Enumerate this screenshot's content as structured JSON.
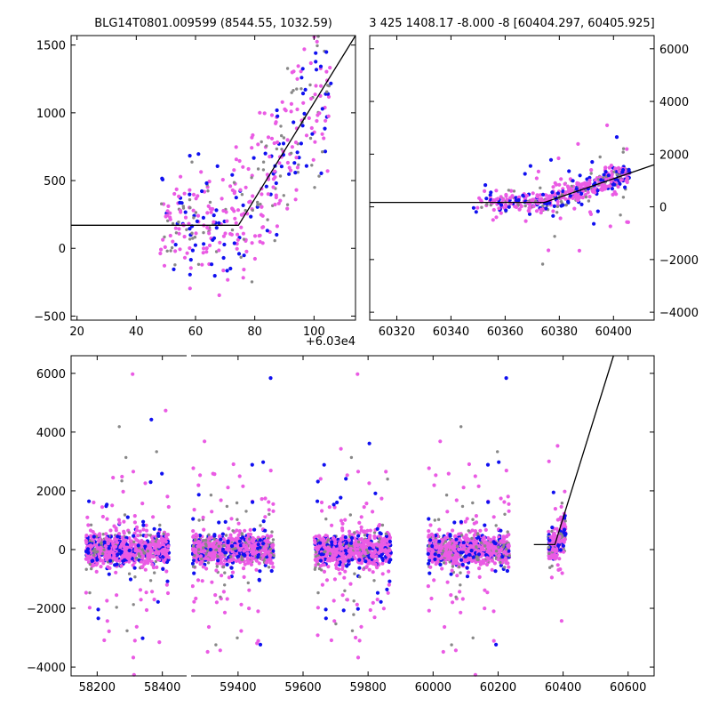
{
  "chart_data": [
    {
      "type": "scatter",
      "title": "BLG14T0801.009599 (8544.55, 1032.59)",
      "x_offset_label": "+6.03e4",
      "xlim": [
        60318,
        60414
      ],
      "ylim": [
        -530,
        1570
      ],
      "x_ticks": [
        20,
        40,
        60,
        80,
        100
      ],
      "x_tick_labels": [
        "20",
        "40",
        "60",
        "80",
        "100"
      ],
      "y_ticks": [
        -500,
        0,
        500,
        1000,
        1500
      ],
      "y_tick_labels": [
        "−500",
        "0",
        "500",
        "1000",
        "1500"
      ],
      "model_line": [
        [
          60318,
          170
        ],
        [
          60374.5,
          170
        ],
        [
          60414,
          1570
        ]
      ],
      "series_colors": [
        "#ea5be4",
        "#1010f0",
        "#888888"
      ]
    },
    {
      "type": "scatter",
      "title": "3 425 1408.17 -8.000 -8 [60404.297, 60405.925]",
      "xlim": [
        60310,
        60415
      ],
      "ylim": [
        -4300,
        6500
      ],
      "x_ticks": [
        60320,
        60340,
        60360,
        60380,
        60400
      ],
      "x_tick_labels": [
        "60320",
        "60340",
        "60360",
        "60380",
        "60400"
      ],
      "y_ticks": [
        -4000,
        -2000,
        0,
        2000,
        4000,
        6000
      ],
      "y_tick_labels": [
        "−4000",
        "−2000",
        "0",
        "2000",
        "4000",
        "6000"
      ],
      "model_line": [
        [
          60310,
          170
        ],
        [
          60374.5,
          170
        ],
        [
          60415,
          1600
        ]
      ],
      "series_colors": [
        "#ea5be4",
        "#1010f0",
        "#888888"
      ]
    },
    {
      "type": "scatter",
      "xlim": [
        58120,
        60680
      ],
      "ylim": [
        -4300,
        6600
      ],
      "x_ticks": [
        58200,
        58400,
        59400,
        59600,
        59800,
        60000,
        60200,
        60400,
        60600
      ],
      "x_tick_labels": [
        "58200",
        "58400",
        "59400",
        "59600",
        "59800",
        "60000",
        "60200",
        "60400",
        "60600"
      ],
      "y_ticks": [
        -4000,
        -2000,
        0,
        2000,
        4000,
        6000
      ],
      "y_tick_labels": [
        "−4000",
        "−2000",
        "0",
        "2000",
        "4000",
        "6000"
      ],
      "axis_break": [
        58480,
        59250
      ],
      "seasons": [
        [
          58165,
          58420
        ],
        [
          59260,
          59510
        ],
        [
          59635,
          59870
        ],
        [
          59985,
          60235
        ],
        [
          60355,
          60408
        ]
      ],
      "model_line": [
        [
          60310,
          170
        ],
        [
          60374.5,
          170
        ],
        [
          60555,
          6600
        ]
      ],
      "series_colors": [
        "#ea5be4",
        "#1010f0",
        "#888888"
      ]
    }
  ]
}
